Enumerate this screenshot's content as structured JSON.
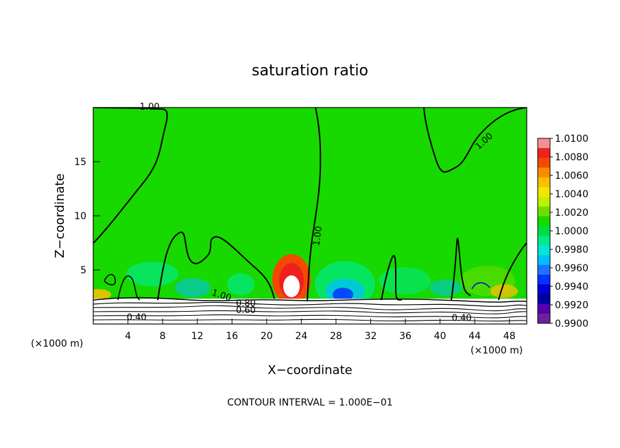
{
  "chart_data": {
    "type": "heatmap",
    "title": "saturation ratio",
    "xlabel": "X−coordinate",
    "ylabel": "Z−coordinate",
    "x_unit": "(×1000 m)",
    "z_unit": "(×1000 m)",
    "xlim": [
      0,
      50
    ],
    "ylim": [
      0,
      20
    ],
    "x_ticks": [
      4,
      8,
      12,
      16,
      20,
      24,
      28,
      32,
      36,
      40,
      44,
      48
    ],
    "x_tick_labels": [
      "4",
      "8",
      "12",
      "16",
      "20",
      "24",
      "28",
      "32",
      "36",
      "40",
      "44",
      "48"
    ],
    "y_ticks": [
      5,
      10,
      15
    ],
    "y_tick_labels": [
      "5",
      "10",
      "15"
    ],
    "colorbar": {
      "min": 0.99,
      "max": 1.01,
      "labels": [
        "1.0100",
        "1.0080",
        "1.0060",
        "1.0040",
        "1.0020",
        "1.0000",
        "0.9980",
        "0.9960",
        "0.9940",
        "0.9920",
        "0.9900"
      ],
      "colors": [
        "#f59090",
        "#ef2020",
        "#f24a00",
        "#fb8a00",
        "#ffbf00",
        "#f2e600",
        "#bdf300",
        "#72dd00",
        "#17d900",
        "#00de3b",
        "#00e98c",
        "#00e6d7",
        "#00bfff",
        "#1f74ff",
        "#0034ff",
        "#0000d7",
        "#0000a0",
        "#5500aa",
        "#6d1fa0"
      ]
    },
    "contour_labels": [
      {
        "text": "1.00",
        "x": 6.5,
        "z": 19.8
      },
      {
        "text": "1.00",
        "x": 45.3,
        "z": 16.7
      },
      {
        "text": "1.00",
        "x": 26.2,
        "z": 8.1
      },
      {
        "text": "1.00",
        "x": 14.7,
        "z": 2.4
      },
      {
        "text": "0.80",
        "x": 17.6,
        "z": 1.65
      },
      {
        "text": "0.60",
        "x": 17.6,
        "z": 1.0
      },
      {
        "text": "0.40",
        "x": 5.0,
        "z": 0.35
      },
      {
        "text": "0.40",
        "x": 42.5,
        "z": 0.3
      }
    ],
    "note": "CONTOUR INTERVAL =   1.000E−01"
  }
}
